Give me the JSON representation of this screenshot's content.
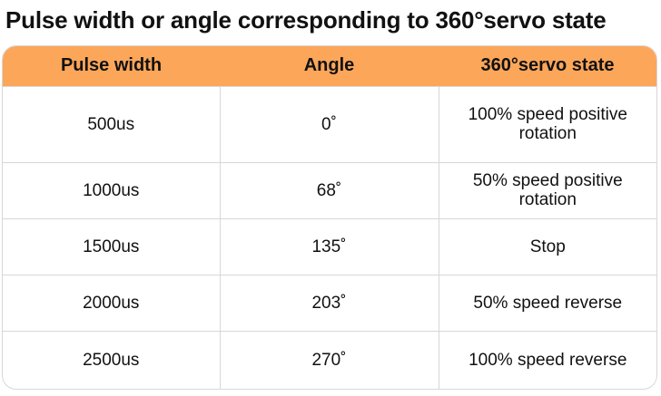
{
  "title": "Pulse width or angle corresponding to 360°servo state",
  "table": {
    "headers": [
      "Pulse width",
      "Angle",
      "360°servo state"
    ],
    "header_color": "#fca65a",
    "rows": [
      [
        "500us",
        "0˚",
        "100% speed positive rotation"
      ],
      [
        "1000us",
        "68˚",
        "50% speed positive rotation"
      ],
      [
        "1500us",
        "135˚",
        "Stop"
      ],
      [
        "2000us",
        "203˚",
        "50% speed reverse"
      ],
      [
        "2500us",
        "270˚",
        "100% speed reverse"
      ]
    ]
  }
}
